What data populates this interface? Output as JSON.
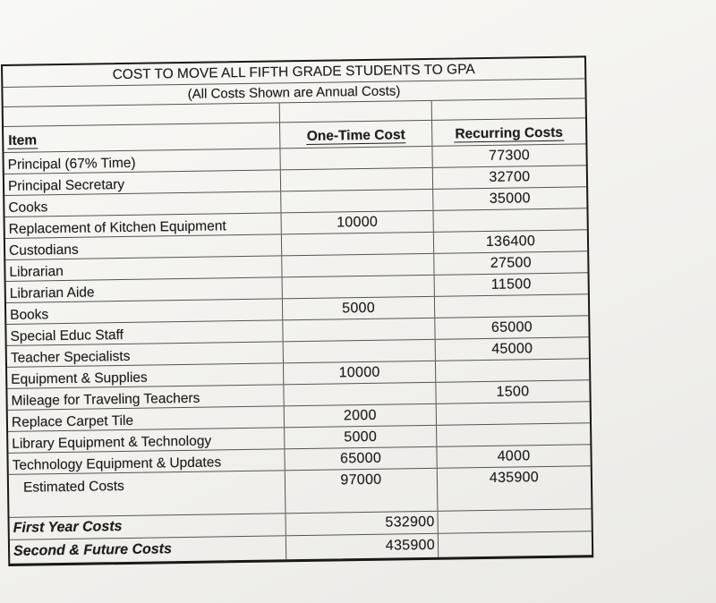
{
  "colors": {
    "paper": "#f3f2ef",
    "ink": "#1d1d1d",
    "grid_line": "#575450",
    "outer_border": "#1a1918"
  },
  "table": {
    "title": "COST TO MOVE ALL FIFTH GRADE STUDENTS TO GPA",
    "subtitle": "(All Costs Shown are Annual Costs)",
    "columns": [
      "Item",
      "One-Time Cost",
      "Recurring Costs"
    ],
    "rows": [
      {
        "item": "Principal (67% Time)",
        "one_time": "",
        "recurring": "77300",
        "indent": false
      },
      {
        "item": "Principal Secretary",
        "one_time": "",
        "recurring": "32700",
        "indent": false
      },
      {
        "item": "Cooks",
        "one_time": "",
        "recurring": "35000",
        "indent": false
      },
      {
        "item": "Replacement of Kitchen Equipment",
        "one_time": "10000",
        "recurring": "",
        "indent": false
      },
      {
        "item": "Custodians",
        "one_time": "",
        "recurring": "136400",
        "indent": false
      },
      {
        "item": "Librarian",
        "one_time": "",
        "recurring": "27500",
        "indent": false
      },
      {
        "item": "Librarian Aide",
        "one_time": "",
        "recurring": "11500",
        "indent": false
      },
      {
        "item": "Books",
        "one_time": "5000",
        "recurring": "",
        "indent": false
      },
      {
        "item": "Special Educ Staff",
        "one_time": "",
        "recurring": "65000",
        "indent": false
      },
      {
        "item": "Teacher Specialists",
        "one_time": "",
        "recurring": "45000",
        "indent": false
      },
      {
        "item": "Equipment & Supplies",
        "one_time": "10000",
        "recurring": "",
        "indent": false
      },
      {
        "item": "Mileage for Traveling Teachers",
        "one_time": "",
        "recurring": "1500",
        "indent": false
      },
      {
        "item": "Replace Carpet Tile",
        "one_time": "2000",
        "recurring": "",
        "indent": false
      },
      {
        "item": "Library Equipment & Technology",
        "one_time": "5000",
        "recurring": "",
        "indent": false
      },
      {
        "item": "Technology Equipment & Updates",
        "one_time": "65000",
        "recurring": "4000",
        "indent": false
      },
      {
        "item": "Estimated Costs",
        "one_time": "97000",
        "recurring": "435900",
        "indent": true
      }
    ],
    "summary_rows": [
      {
        "item": "First Year Costs",
        "one_time": "532900",
        "recurring": ""
      },
      {
        "item": "Second & Future Costs",
        "one_time": "435900",
        "recurring": ""
      }
    ]
  }
}
